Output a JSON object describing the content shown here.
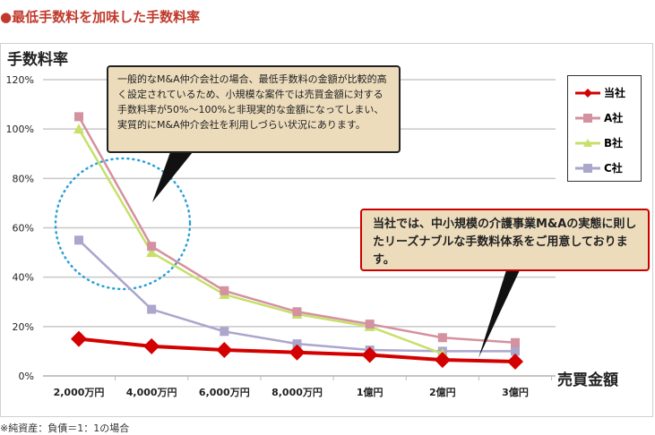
{
  "title": "●最低手数料を加味した手数料率",
  "note": "※純資産：負債＝1：1の場合",
  "callouts": {
    "general": "一般的なM&A仲介会社の場合、最低手数料の金額が比較的高く設定されているため、小規模な案件では売買金額に対する手数料率が50%～100%と非現実的な金額になってしまい、実質的にM&A仲介会社を利用しづらい状況にあります。",
    "ours": "当社では、中小規模の介護事業M&Aの実態に則したリーズナブルな手数料体系をご用意しております。"
  },
  "chart_data": {
    "type": "line",
    "ylabel": "手数料率",
    "xlabel": "売買金額",
    "categories": [
      "2,000万円",
      "4,000万円",
      "6,000万円",
      "8,000万円",
      "1億円",
      "2億円",
      "3億円"
    ],
    "ylim": [
      0,
      120
    ],
    "yticks": [
      "0%",
      "20%",
      "40%",
      "60%",
      "80%",
      "100%",
      "120%"
    ],
    "grid": true,
    "legend_position": "right",
    "series": [
      {
        "name": "当社",
        "color": "#d40000",
        "marker": "diamond",
        "values": [
          15,
          12,
          10.5,
          9.5,
          8.5,
          6.5,
          5.8
        ]
      },
      {
        "name": "A社",
        "color": "#d4919f",
        "marker": "square",
        "values": [
          105,
          52.5,
          34.5,
          26,
          21,
          15.5,
          13.5
        ]
      },
      {
        "name": "B社",
        "color": "#c6e06a",
        "marker": "triangle",
        "values": [
          100,
          50,
          33,
          25,
          20,
          9,
          null
        ]
      },
      {
        "name": "C社",
        "color": "#aaa6cc",
        "marker": "square",
        "values": [
          55,
          27,
          18,
          13,
          10.5,
          10,
          10
        ]
      }
    ]
  }
}
